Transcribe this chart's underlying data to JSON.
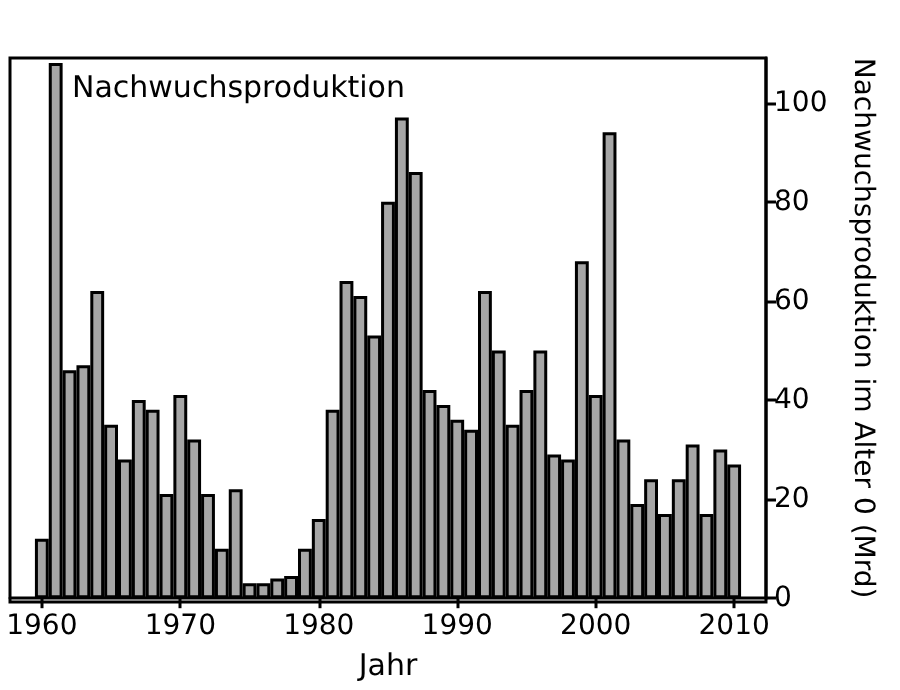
{
  "chart_data": {
    "type": "bar",
    "annotations": [
      "Nachwuchsproduktion"
    ],
    "xlabel": "Jahr",
    "ylabel": "Nachwuchsproduktion im Alter 0 (Mrd)",
    "x": [
      1960,
      1961,
      1962,
      1963,
      1964,
      1965,
      1966,
      1967,
      1968,
      1969,
      1970,
      1971,
      1972,
      1973,
      1974,
      1975,
      1976,
      1977,
      1978,
      1979,
      1980,
      1981,
      1982,
      1983,
      1984,
      1985,
      1986,
      1987,
      1988,
      1989,
      1990,
      1991,
      1992,
      1993,
      1994,
      1995,
      1996,
      1997,
      1998,
      1999,
      2000,
      2001,
      2002,
      2003,
      2004,
      2005,
      2006,
      2007,
      2008,
      2009,
      2010
    ],
    "values": [
      12,
      108,
      46,
      47,
      62,
      35,
      28,
      40,
      38,
      21,
      41,
      32,
      21,
      10,
      22,
      3,
      3,
      4,
      4.5,
      10,
      16,
      38,
      64,
      61,
      53,
      80,
      97,
      86,
      42,
      39,
      36,
      34,
      62,
      50,
      35,
      42,
      50,
      29,
      28,
      68,
      41,
      94,
      32,
      19,
      24,
      17,
      24,
      31,
      17,
      30,
      27
    ],
    "color": "#a6a6a6",
    "xlim": [
      1957.7,
      2012.3
    ],
    "xticks": [
      1960,
      1970,
      1980,
      1990,
      2000,
      2010
    ],
    "ylim": [
      0,
      109
    ],
    "yticks": [
      0,
      20,
      40,
      60,
      80,
      100
    ],
    "grid": false
  }
}
